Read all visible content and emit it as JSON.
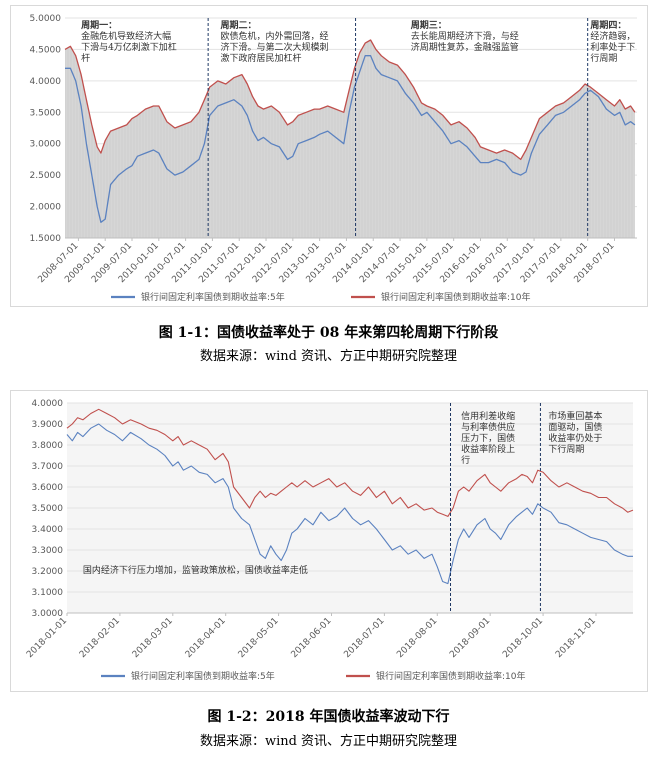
{
  "chart_data": [
    {
      "type": "area",
      "caption": "图 1-1：国债收益率处于 08 年来第四轮周期下行阶段",
      "source": "数据来源：wind 资讯、方正中期研究院整理",
      "ylim": [
        1.5,
        5.0
      ],
      "yticks": [
        "1.5000",
        "2.0000",
        "2.5000",
        "3.0000",
        "3.5000",
        "4.0000",
        "4.5000",
        "5.0000"
      ],
      "xticks": [
        "2008-07-01",
        "2009-01-01",
        "2009-07-01",
        "2010-01-01",
        "2010-07-01",
        "2011-01-01",
        "2011-07-01",
        "2012-01-01",
        "2012-07-01",
        "2013-01-01",
        "2013-07-01",
        "2014-01-01",
        "2014-07-01",
        "2015-01-01",
        "2015-07-01",
        "2016-01-01",
        "2016-07-01",
        "2017-01-01",
        "2017-07-01",
        "2018-01-01",
        "2018-07-01"
      ],
      "x_range": [
        2008.25,
        2018.92
      ],
      "dividers": [
        2010.92,
        2013.67,
        2018.0
      ],
      "annotations": [
        {
          "x": 2008.55,
          "lines": [
            "周期一：",
            "金融危机导致经济大幅",
            "下滑与4万亿刺激下加杠",
            "杆"
          ]
        },
        {
          "x": 2011.15,
          "lines": [
            "周期二：",
            "欧债危机，内外需回落，经",
            "济下滑。与第二次大规模刺",
            "激下政府居民加杠杆"
          ]
        },
        {
          "x": 2014.7,
          "lines": [
            "周期三：",
            "去长能周期经济下滑，与经",
            "济周期性复苏，金融强监管"
          ]
        },
        {
          "x": 2018.05,
          "lines": [
            "周期四：",
            "经济趋弱，",
            "利率处于下",
            "行周期"
          ]
        }
      ],
      "series": [
        {
          "name": "银行间固定利率国债到期收益率:5年",
          "color": "#5b82c0",
          "x": [
            2008.25,
            2008.35,
            2008.45,
            2008.55,
            2008.65,
            2008.75,
            2008.85,
            2008.92,
            2009.0,
            2009.1,
            2009.25,
            2009.4,
            2009.5,
            2009.6,
            2009.75,
            2009.9,
            2010.0,
            2010.15,
            2010.3,
            2010.45,
            2010.6,
            2010.75,
            2010.85,
            2010.95,
            2011.1,
            2011.25,
            2011.4,
            2011.55,
            2011.65,
            2011.75,
            2011.85,
            2011.95,
            2012.1,
            2012.25,
            2012.4,
            2012.5,
            2012.6,
            2012.75,
            2012.9,
            2013.0,
            2013.15,
            2013.3,
            2013.45,
            2013.55,
            2013.65,
            2013.75,
            2013.85,
            2013.95,
            2014.05,
            2014.15,
            2014.3,
            2014.45,
            2014.6,
            2014.75,
            2014.9,
            2015.0,
            2015.15,
            2015.3,
            2015.45,
            2015.6,
            2015.75,
            2015.9,
            2016.0,
            2016.15,
            2016.3,
            2016.45,
            2016.6,
            2016.75,
            2016.85,
            2016.95,
            2017.1,
            2017.25,
            2017.4,
            2017.55,
            2017.7,
            2017.85,
            2017.95,
            2018.05,
            2018.2,
            2018.35,
            2018.5,
            2018.6,
            2018.7,
            2018.8,
            2018.88
          ],
          "y": [
            4.2,
            4.2,
            4.0,
            3.6,
            3.0,
            2.5,
            2.0,
            1.75,
            1.8,
            2.35,
            2.5,
            2.6,
            2.65,
            2.8,
            2.85,
            2.9,
            2.85,
            2.6,
            2.5,
            2.55,
            2.65,
            2.75,
            3.0,
            3.45,
            3.6,
            3.65,
            3.7,
            3.6,
            3.45,
            3.2,
            3.05,
            3.1,
            3.0,
            2.95,
            2.75,
            2.8,
            3.0,
            3.05,
            3.1,
            3.15,
            3.2,
            3.1,
            3.0,
            3.5,
            3.9,
            4.15,
            4.4,
            4.4,
            4.2,
            4.1,
            4.05,
            4.0,
            3.8,
            3.65,
            3.45,
            3.5,
            3.35,
            3.2,
            3.0,
            3.05,
            2.95,
            2.8,
            2.7,
            2.7,
            2.75,
            2.7,
            2.55,
            2.5,
            2.55,
            2.85,
            3.15,
            3.3,
            3.45,
            3.5,
            3.6,
            3.7,
            3.8,
            3.85,
            3.75,
            3.55,
            3.45,
            3.5,
            3.3,
            3.35,
            3.3
          ]
        },
        {
          "name": "银行间固定利率国债到期收益率:10年",
          "color": "#c0504d",
          "x": [
            2008.25,
            2008.35,
            2008.45,
            2008.55,
            2008.65,
            2008.75,
            2008.85,
            2008.92,
            2009.0,
            2009.1,
            2009.25,
            2009.4,
            2009.5,
            2009.6,
            2009.75,
            2009.9,
            2010.0,
            2010.15,
            2010.3,
            2010.45,
            2010.6,
            2010.75,
            2010.85,
            2010.95,
            2011.1,
            2011.25,
            2011.4,
            2011.55,
            2011.65,
            2011.75,
            2011.85,
            2011.95,
            2012.1,
            2012.25,
            2012.4,
            2012.5,
            2012.6,
            2012.75,
            2012.9,
            2013.0,
            2013.15,
            2013.3,
            2013.45,
            2013.55,
            2013.65,
            2013.75,
            2013.85,
            2013.95,
            2014.05,
            2014.15,
            2014.3,
            2014.45,
            2014.6,
            2014.75,
            2014.9,
            2015.0,
            2015.15,
            2015.3,
            2015.45,
            2015.6,
            2015.75,
            2015.9,
            2016.0,
            2016.15,
            2016.3,
            2016.45,
            2016.6,
            2016.75,
            2016.85,
            2016.95,
            2017.1,
            2017.25,
            2017.4,
            2017.55,
            2017.7,
            2017.85,
            2017.95,
            2018.05,
            2018.2,
            2018.35,
            2018.5,
            2018.6,
            2018.7,
            2018.8,
            2018.88
          ],
          "y": [
            4.5,
            4.55,
            4.4,
            4.1,
            3.7,
            3.3,
            2.95,
            2.85,
            3.05,
            3.2,
            3.25,
            3.3,
            3.4,
            3.45,
            3.55,
            3.6,
            3.6,
            3.35,
            3.25,
            3.3,
            3.35,
            3.5,
            3.7,
            3.9,
            4.0,
            3.95,
            4.05,
            4.1,
            3.95,
            3.75,
            3.6,
            3.55,
            3.6,
            3.5,
            3.3,
            3.35,
            3.45,
            3.5,
            3.55,
            3.55,
            3.6,
            3.55,
            3.5,
            3.85,
            4.2,
            4.45,
            4.6,
            4.65,
            4.5,
            4.4,
            4.3,
            4.25,
            4.1,
            3.9,
            3.65,
            3.6,
            3.55,
            3.45,
            3.3,
            3.35,
            3.25,
            3.1,
            2.95,
            2.9,
            2.85,
            2.9,
            2.85,
            2.75,
            2.9,
            3.1,
            3.4,
            3.5,
            3.6,
            3.65,
            3.75,
            3.85,
            3.95,
            3.9,
            3.8,
            3.7,
            3.6,
            3.7,
            3.55,
            3.6,
            3.5
          ]
        }
      ]
    },
    {
      "type": "line",
      "caption": "图 1-2：2018 年国债收益率波动下行",
      "source": "数据来源：wind 资讯、方正中期研究院整理",
      "ylim": [
        3.0,
        4.0
      ],
      "yticks": [
        "3.0000",
        "3.1000",
        "3.2000",
        "3.3000",
        "3.4000",
        "3.5000",
        "3.6000",
        "3.7000",
        "3.8000",
        "3.9000",
        "4.0000"
      ],
      "xticks": [
        "2018-01-01",
        "2018-02-01",
        "2018-03-01",
        "2018-04-01",
        "2018-05-01",
        "2018-06-01",
        "2018-07-01",
        "2018-08-01",
        "2018-09-01",
        "2018-10-01",
        "2018-11-01"
      ],
      "x_range": [
        1.0,
        11.7
      ],
      "dividers": [
        8.25,
        9.95
      ],
      "annotations": [
        {
          "x": 8.45,
          "y_top": true,
          "lines": [
            "信用利差收缩",
            "与利率债供应",
            "压力下，国债",
            "收益率阶段上",
            "行"
          ]
        },
        {
          "x": 10.1,
          "y_top": true,
          "lines": [
            "市场重回基本",
            "面驱动，国债",
            "收益率仍处于",
            "下行周期"
          ]
        },
        {
          "x": 1.3,
          "y_top": false,
          "lines": [
            "国内经济下行压力增加，监管政策放松，国债收益率走低"
          ]
        }
      ],
      "series": [
        {
          "name": "银行间固定利率国债到期收益率:5年",
          "color": "#5b82c0",
          "x": [
            1.0,
            1.1,
            1.2,
            1.3,
            1.45,
            1.6,
            1.75,
            1.9,
            2.05,
            2.2,
            2.4,
            2.55,
            2.7,
            2.85,
            3.0,
            3.1,
            3.2,
            3.35,
            3.5,
            3.65,
            3.8,
            3.95,
            4.05,
            4.15,
            4.3,
            4.45,
            4.55,
            4.65,
            4.75,
            4.85,
            4.95,
            5.05,
            5.15,
            5.25,
            5.35,
            5.5,
            5.65,
            5.8,
            5.95,
            6.1,
            6.25,
            6.4,
            6.55,
            6.7,
            6.85,
            7.0,
            7.15,
            7.3,
            7.45,
            7.6,
            7.75,
            7.9,
            8.0,
            8.1,
            8.2,
            8.3,
            8.4,
            8.5,
            8.6,
            8.75,
            8.9,
            9.0,
            9.1,
            9.2,
            9.35,
            9.5,
            9.6,
            9.7,
            9.8,
            9.9,
            10.0,
            10.15,
            10.3,
            10.45,
            10.6,
            10.75,
            10.9,
            11.05,
            11.2,
            11.35,
            11.5,
            11.6,
            11.7
          ],
          "y": [
            3.85,
            3.82,
            3.86,
            3.84,
            3.88,
            3.9,
            3.87,
            3.85,
            3.82,
            3.86,
            3.83,
            3.8,
            3.78,
            3.75,
            3.7,
            3.72,
            3.68,
            3.7,
            3.67,
            3.66,
            3.62,
            3.64,
            3.6,
            3.5,
            3.45,
            3.42,
            3.35,
            3.28,
            3.26,
            3.32,
            3.28,
            3.25,
            3.3,
            3.38,
            3.4,
            3.45,
            3.42,
            3.48,
            3.44,
            3.46,
            3.5,
            3.45,
            3.42,
            3.44,
            3.4,
            3.35,
            3.3,
            3.32,
            3.28,
            3.3,
            3.26,
            3.28,
            3.22,
            3.15,
            3.14,
            3.25,
            3.35,
            3.4,
            3.36,
            3.42,
            3.45,
            3.4,
            3.38,
            3.35,
            3.42,
            3.46,
            3.48,
            3.5,
            3.47,
            3.52,
            3.5,
            3.48,
            3.43,
            3.42,
            3.4,
            3.38,
            3.36,
            3.35,
            3.34,
            3.3,
            3.28,
            3.27,
            3.27
          ]
        },
        {
          "name": "银行间固定利率国债到期收益率:10年",
          "color": "#c0504d",
          "x": [
            1.0,
            1.1,
            1.2,
            1.3,
            1.45,
            1.6,
            1.75,
            1.9,
            2.05,
            2.2,
            2.4,
            2.55,
            2.7,
            2.85,
            3.0,
            3.1,
            3.2,
            3.35,
            3.5,
            3.65,
            3.8,
            3.95,
            4.05,
            4.15,
            4.3,
            4.45,
            4.55,
            4.65,
            4.75,
            4.85,
            4.95,
            5.05,
            5.15,
            5.25,
            5.35,
            5.5,
            5.65,
            5.8,
            5.95,
            6.1,
            6.25,
            6.4,
            6.55,
            6.7,
            6.85,
            7.0,
            7.15,
            7.3,
            7.45,
            7.6,
            7.75,
            7.9,
            8.0,
            8.1,
            8.2,
            8.3,
            8.4,
            8.5,
            8.6,
            8.75,
            8.9,
            9.0,
            9.1,
            9.2,
            9.35,
            9.5,
            9.6,
            9.7,
            9.8,
            9.9,
            10.0,
            10.15,
            10.3,
            10.45,
            10.6,
            10.75,
            10.9,
            11.05,
            11.2,
            11.35,
            11.5,
            11.6,
            11.7
          ],
          "y": [
            3.88,
            3.9,
            3.93,
            3.92,
            3.95,
            3.97,
            3.95,
            3.93,
            3.9,
            3.92,
            3.9,
            3.88,
            3.87,
            3.85,
            3.82,
            3.84,
            3.8,
            3.82,
            3.8,
            3.78,
            3.73,
            3.76,
            3.72,
            3.6,
            3.55,
            3.5,
            3.55,
            3.58,
            3.55,
            3.57,
            3.56,
            3.58,
            3.6,
            3.62,
            3.6,
            3.63,
            3.6,
            3.62,
            3.64,
            3.6,
            3.62,
            3.58,
            3.56,
            3.6,
            3.55,
            3.58,
            3.52,
            3.55,
            3.5,
            3.52,
            3.49,
            3.5,
            3.48,
            3.47,
            3.46,
            3.5,
            3.58,
            3.6,
            3.58,
            3.63,
            3.66,
            3.62,
            3.6,
            3.58,
            3.62,
            3.64,
            3.66,
            3.65,
            3.62,
            3.68,
            3.67,
            3.63,
            3.6,
            3.62,
            3.6,
            3.58,
            3.57,
            3.55,
            3.55,
            3.52,
            3.5,
            3.48,
            3.49
          ]
        }
      ]
    }
  ]
}
